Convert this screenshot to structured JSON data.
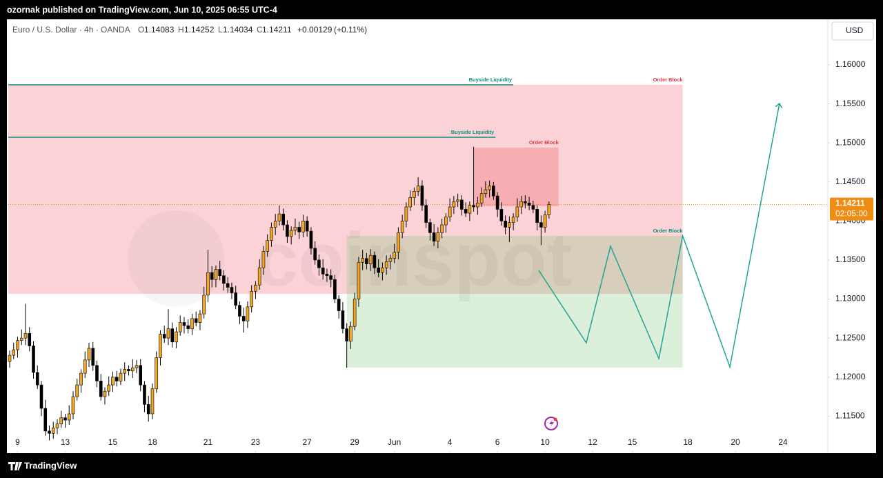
{
  "header": {
    "published": "ozornak published on TradingView.com, Jun 10, 2025 06:55 UTC-4",
    "symbol": "Euro / U.S. Dollar · 4h · OANDA",
    "o_letter": "O",
    "o_value": "1.14083",
    "h_letter": "H",
    "h_value": "1.14252",
    "l_letter": "L",
    "l_value": "1.14034",
    "c_letter": "C",
    "c_value": "1.14211",
    "change": "+0.00129",
    "change_pct": "(+0.11%)",
    "currency": "USD"
  },
  "watermark": "coinspot",
  "footer": {
    "brand": "TradingView"
  },
  "chart_data": {
    "type": "candlestick",
    "up_color": "#f5a623",
    "down_color": "#000000",
    "xlim": [
      -0.35,
      206.3
    ],
    "xticks": [
      {
        "value": 2,
        "label": "9"
      },
      {
        "value": 14,
        "label": "13"
      },
      {
        "value": 26,
        "label": "15"
      },
      {
        "value": 36,
        "label": "18"
      },
      {
        "value": 50,
        "label": "21"
      },
      {
        "value": 62,
        "label": "23"
      },
      {
        "value": 75,
        "label": "27"
      },
      {
        "value": 87,
        "label": "29"
      },
      {
        "value": 97,
        "label": "Jun"
      },
      {
        "value": 111,
        "label": "4"
      },
      {
        "value": 123,
        "label": "6"
      },
      {
        "value": 135,
        "label": "10"
      },
      {
        "value": 147,
        "label": "12"
      },
      {
        "value": 157,
        "label": "15"
      },
      {
        "value": 171,
        "label": "18"
      },
      {
        "value": 183,
        "label": "20"
      },
      {
        "value": 195,
        "label": "24"
      }
    ],
    "ylim": [
      1.11035,
      1.16583
    ],
    "yticks": [
      {
        "value": 1.16,
        "label": "1.16000"
      },
      {
        "value": 1.155,
        "label": "1.15500"
      },
      {
        "value": 1.15,
        "label": "1.15000"
      },
      {
        "value": 1.145,
        "label": "1.14500"
      },
      {
        "value": 1.14,
        "label": "1.14000"
      },
      {
        "value": 1.135,
        "label": "1.13500"
      },
      {
        "value": 1.13,
        "label": "1.13000"
      },
      {
        "value": 1.125,
        "label": "1.12500"
      },
      {
        "value": 1.12,
        "label": "1.12000"
      },
      {
        "value": 1.115,
        "label": "1.11500"
      }
    ],
    "grid": false,
    "last_price": 1.14211,
    "last_price_color": "#f08c12",
    "countdown": "02:05:00",
    "ohlc": [
      [
        1.122,
        1.1234,
        1.1212,
        1.1228
      ],
      [
        1.1228,
        1.1244,
        1.1223,
        1.1235
      ],
      [
        1.1235,
        1.1252,
        1.1225,
        1.1247
      ],
      [
        1.1247,
        1.1261,
        1.1241,
        1.125
      ],
      [
        1.125,
        1.1294,
        1.1241,
        1.1256
      ],
      [
        1.1256,
        1.1264,
        1.1233,
        1.124
      ],
      [
        1.124,
        1.1246,
        1.1198,
        1.1206
      ],
      [
        1.1206,
        1.1215,
        1.1185,
        1.119
      ],
      [
        1.119,
        1.1195,
        1.115,
        1.116
      ],
      [
        1.116,
        1.1171,
        1.1125,
        1.1131
      ],
      [
        1.1131,
        1.1138,
        1.1119,
        1.1128
      ],
      [
        1.1128,
        1.1143,
        1.1121,
        1.1135
      ],
      [
        1.1135,
        1.1146,
        1.1127,
        1.114
      ],
      [
        1.114,
        1.1157,
        1.1135,
        1.1148
      ],
      [
        1.1148,
        1.1153,
        1.1135,
        1.1145
      ],
      [
        1.1145,
        1.1164,
        1.1139,
        1.1153
      ],
      [
        1.1153,
        1.1182,
        1.1146,
        1.1175
      ],
      [
        1.1175,
        1.1198,
        1.117,
        1.119
      ],
      [
        1.119,
        1.121,
        1.118,
        1.1205
      ],
      [
        1.1205,
        1.1233,
        1.1199,
        1.1222
      ],
      [
        1.1222,
        1.1244,
        1.1213,
        1.1237
      ],
      [
        1.1237,
        1.1245,
        1.1208,
        1.1215
      ],
      [
        1.1215,
        1.1221,
        1.1187,
        1.1195
      ],
      [
        1.1195,
        1.1204,
        1.117,
        1.1175
      ],
      [
        1.1175,
        1.1187,
        1.1165,
        1.1182
      ],
      [
        1.1182,
        1.1201,
        1.1176,
        1.119
      ],
      [
        1.119,
        1.1207,
        1.1181,
        1.12
      ],
      [
        1.12,
        1.1208,
        1.1188,
        1.1195
      ],
      [
        1.1195,
        1.1211,
        1.119,
        1.1205
      ],
      [
        1.1205,
        1.1219,
        1.1195,
        1.121
      ],
      [
        1.121,
        1.1215,
        1.1202,
        1.1208
      ],
      [
        1.1208,
        1.1223,
        1.1199,
        1.1212
      ],
      [
        1.1212,
        1.1222,
        1.1205,
        1.1215
      ],
      [
        1.1215,
        1.1223,
        1.1182,
        1.119
      ],
      [
        1.119,
        1.1195,
        1.1155,
        1.1165
      ],
      [
        1.1165,
        1.1176,
        1.1143,
        1.1153
      ],
      [
        1.1153,
        1.1192,
        1.1146,
        1.1185
      ],
      [
        1.1185,
        1.1233,
        1.118,
        1.1225
      ],
      [
        1.1225,
        1.126,
        1.1215,
        1.1255
      ],
      [
        1.1255,
        1.1266,
        1.1244,
        1.125
      ],
      [
        1.125,
        1.1287,
        1.1241,
        1.1262
      ],
      [
        1.1262,
        1.127,
        1.1238,
        1.1245
      ],
      [
        1.1245,
        1.1264,
        1.1237,
        1.1258
      ],
      [
        1.1258,
        1.1279,
        1.1253,
        1.127
      ],
      [
        1.127,
        1.1277,
        1.1256,
        1.1266
      ],
      [
        1.1266,
        1.1274,
        1.1256,
        1.1262
      ],
      [
        1.1262,
        1.1281,
        1.1254,
        1.1275
      ],
      [
        1.1275,
        1.1284,
        1.1265,
        1.127
      ],
      [
        1.127,
        1.1286,
        1.126,
        1.1281
      ],
      [
        1.1281,
        1.1316,
        1.1275,
        1.1305
      ],
      [
        1.1305,
        1.1363,
        1.1296,
        1.1334
      ],
      [
        1.1334,
        1.1342,
        1.1315,
        1.1325
      ],
      [
        1.1325,
        1.1343,
        1.1315,
        1.1338
      ],
      [
        1.1338,
        1.1349,
        1.1324,
        1.133
      ],
      [
        1.133,
        1.1337,
        1.1311,
        1.132
      ],
      [
        1.132,
        1.1328,
        1.1308,
        1.1315
      ],
      [
        1.1315,
        1.1321,
        1.13,
        1.1308
      ],
      [
        1.1308,
        1.1317,
        1.1287,
        1.1292
      ],
      [
        1.1292,
        1.1297,
        1.1268,
        1.1278
      ],
      [
        1.1278,
        1.1289,
        1.1257,
        1.1272
      ],
      [
        1.1272,
        1.1297,
        1.1263,
        1.129
      ],
      [
        1.129,
        1.1318,
        1.1283,
        1.131
      ],
      [
        1.131,
        1.1323,
        1.13,
        1.1318
      ],
      [
        1.1318,
        1.1351,
        1.1312,
        1.134
      ],
      [
        1.134,
        1.1368,
        1.1331,
        1.1361
      ],
      [
        1.1361,
        1.1383,
        1.1354,
        1.1375
      ],
      [
        1.1375,
        1.1398,
        1.1367,
        1.1392
      ],
      [
        1.1392,
        1.1409,
        1.1382,
        1.14
      ],
      [
        1.14,
        1.142,
        1.1394,
        1.1409
      ],
      [
        1.1409,
        1.1416,
        1.1388,
        1.1395
      ],
      [
        1.1395,
        1.1401,
        1.1372,
        1.138
      ],
      [
        1.138,
        1.1393,
        1.137,
        1.1388
      ],
      [
        1.1388,
        1.1403,
        1.1382,
        1.1392
      ],
      [
        1.1392,
        1.1399,
        1.1377,
        1.1386
      ],
      [
        1.1386,
        1.1408,
        1.1379,
        1.14
      ],
      [
        1.14,
        1.1406,
        1.138,
        1.1387
      ],
      [
        1.1387,
        1.1392,
        1.1357,
        1.1365
      ],
      [
        1.1365,
        1.1374,
        1.1344,
        1.135
      ],
      [
        1.135,
        1.1357,
        1.133,
        1.134
      ],
      [
        1.134,
        1.1351,
        1.1325,
        1.1332
      ],
      [
        1.1332,
        1.1339,
        1.1322,
        1.133
      ],
      [
        1.133,
        1.1338,
        1.1315,
        1.1325
      ],
      [
        1.1325,
        1.1331,
        1.1295,
        1.13
      ],
      [
        1.13,
        1.1305,
        1.1275,
        1.1285
      ],
      [
        1.1285,
        1.1296,
        1.1256,
        1.1262
      ],
      [
        1.1262,
        1.1269,
        1.1212,
        1.1246
      ],
      [
        1.1246,
        1.1271,
        1.1236,
        1.1265
      ],
      [
        1.1265,
        1.1308,
        1.126,
        1.13
      ],
      [
        1.13,
        1.1354,
        1.129,
        1.1347
      ],
      [
        1.1347,
        1.1363,
        1.1337,
        1.1352
      ],
      [
        1.1352,
        1.1359,
        1.1338,
        1.1345
      ],
      [
        1.1345,
        1.1364,
        1.1336,
        1.1356
      ],
      [
        1.1356,
        1.1361,
        1.1332,
        1.134
      ],
      [
        1.134,
        1.1351,
        1.1328,
        1.1334
      ],
      [
        1.1334,
        1.1347,
        1.1324,
        1.134
      ],
      [
        1.134,
        1.1356,
        1.1331,
        1.1348
      ],
      [
        1.1348,
        1.1357,
        1.1338,
        1.1352
      ],
      [
        1.1352,
        1.1371,
        1.1346,
        1.136
      ],
      [
        1.136,
        1.1392,
        1.1351,
        1.1385
      ],
      [
        1.1385,
        1.1408,
        1.1378,
        1.14
      ],
      [
        1.14,
        1.1424,
        1.1392,
        1.1418
      ],
      [
        1.1418,
        1.1439,
        1.1413,
        1.143
      ],
      [
        1.143,
        1.1443,
        1.142,
        1.1438
      ],
      [
        1.1438,
        1.1456,
        1.1432,
        1.1445
      ],
      [
        1.1445,
        1.1452,
        1.1413,
        1.142
      ],
      [
        1.142,
        1.1428,
        1.1391,
        1.1398
      ],
      [
        1.1398,
        1.1403,
        1.1375,
        1.1385
      ],
      [
        1.1385,
        1.1396,
        1.1368,
        1.1374
      ],
      [
        1.1374,
        1.1392,
        1.1365,
        1.1385
      ],
      [
        1.1385,
        1.1403,
        1.1378,
        1.1395
      ],
      [
        1.1395,
        1.141,
        1.1385,
        1.1405
      ],
      [
        1.1405,
        1.1429,
        1.1399,
        1.1418
      ],
      [
        1.1418,
        1.1432,
        1.1409,
        1.1425
      ],
      [
        1.1425,
        1.1435,
        1.1418,
        1.1427
      ],
      [
        1.1427,
        1.1433,
        1.1407,
        1.1415
      ],
      [
        1.1415,
        1.1424,
        1.1405,
        1.141
      ],
      [
        1.141,
        1.1425,
        1.14,
        1.142
      ],
      [
        1.142,
        1.1495,
        1.1412,
        1.1418
      ],
      [
        1.1418,
        1.1431,
        1.1408,
        1.1423
      ],
      [
        1.1423,
        1.1443,
        1.1418,
        1.1435
      ],
      [
        1.1435,
        1.1451,
        1.143,
        1.144
      ],
      [
        1.144,
        1.1452,
        1.143,
        1.1445
      ],
      [
        1.1445,
        1.145,
        1.1427,
        1.1432
      ],
      [
        1.1432,
        1.1437,
        1.1405,
        1.1415
      ],
      [
        1.1415,
        1.1424,
        1.1394,
        1.14
      ],
      [
        1.14,
        1.1407,
        1.1383,
        1.1392
      ],
      [
        1.1392,
        1.1406,
        1.1373,
        1.1398
      ],
      [
        1.1398,
        1.141,
        1.1388,
        1.1405
      ],
      [
        1.1405,
        1.1429,
        1.1399,
        1.1418
      ],
      [
        1.1418,
        1.1432,
        1.1409,
        1.1425
      ],
      [
        1.1425,
        1.1433,
        1.1416,
        1.1423
      ],
      [
        1.1423,
        1.1431,
        1.1414,
        1.142
      ],
      [
        1.142,
        1.1426,
        1.141,
        1.1415
      ],
      [
        1.1415,
        1.142,
        1.1388,
        1.1398
      ],
      [
        1.1398,
        1.1407,
        1.1369,
        1.1392
      ],
      [
        1.1392,
        1.1413,
        1.1385,
        1.1408
      ],
      [
        1.1408,
        1.1425,
        1.1403,
        1.1421
      ]
    ],
    "zones": [
      {
        "label": "Order Block",
        "color": "#fbd3d6",
        "x": [
          -0.35,
          169.7
        ],
        "y": [
          1.15744,
          1.13067
        ]
      },
      {
        "label": "Order Block",
        "color": "#f6aeb3",
        "x": [
          117.2,
          138.4
        ],
        "y": [
          1.1494,
          1.14189
        ]
      },
      {
        "label": "Order Block",
        "color": "rgba(110,190,110,0.25)",
        "x": [
          85,
          169.7
        ],
        "y": [
          1.13809,
          1.12122
        ]
      }
    ],
    "levels": [
      {
        "label": "Buyside Liquidity",
        "color": "#0f8f7a",
        "value": 1.15744,
        "x": [
          -0.35,
          127
        ]
      },
      {
        "label": "Buyside Liquidity",
        "color": "#0f8f7a",
        "value": 1.15072,
        "x": [
          -0.35,
          122.5
        ]
      }
    ],
    "projection": {
      "color": "#22a391",
      "x": [
        133.4,
        145.4,
        151.5,
        163.7,
        169.7,
        181.6,
        194.1
      ],
      "y": [
        1.13368,
        1.1244,
        1.13677,
        1.12237,
        1.13809,
        1.12131,
        1.15505
      ]
    }
  }
}
